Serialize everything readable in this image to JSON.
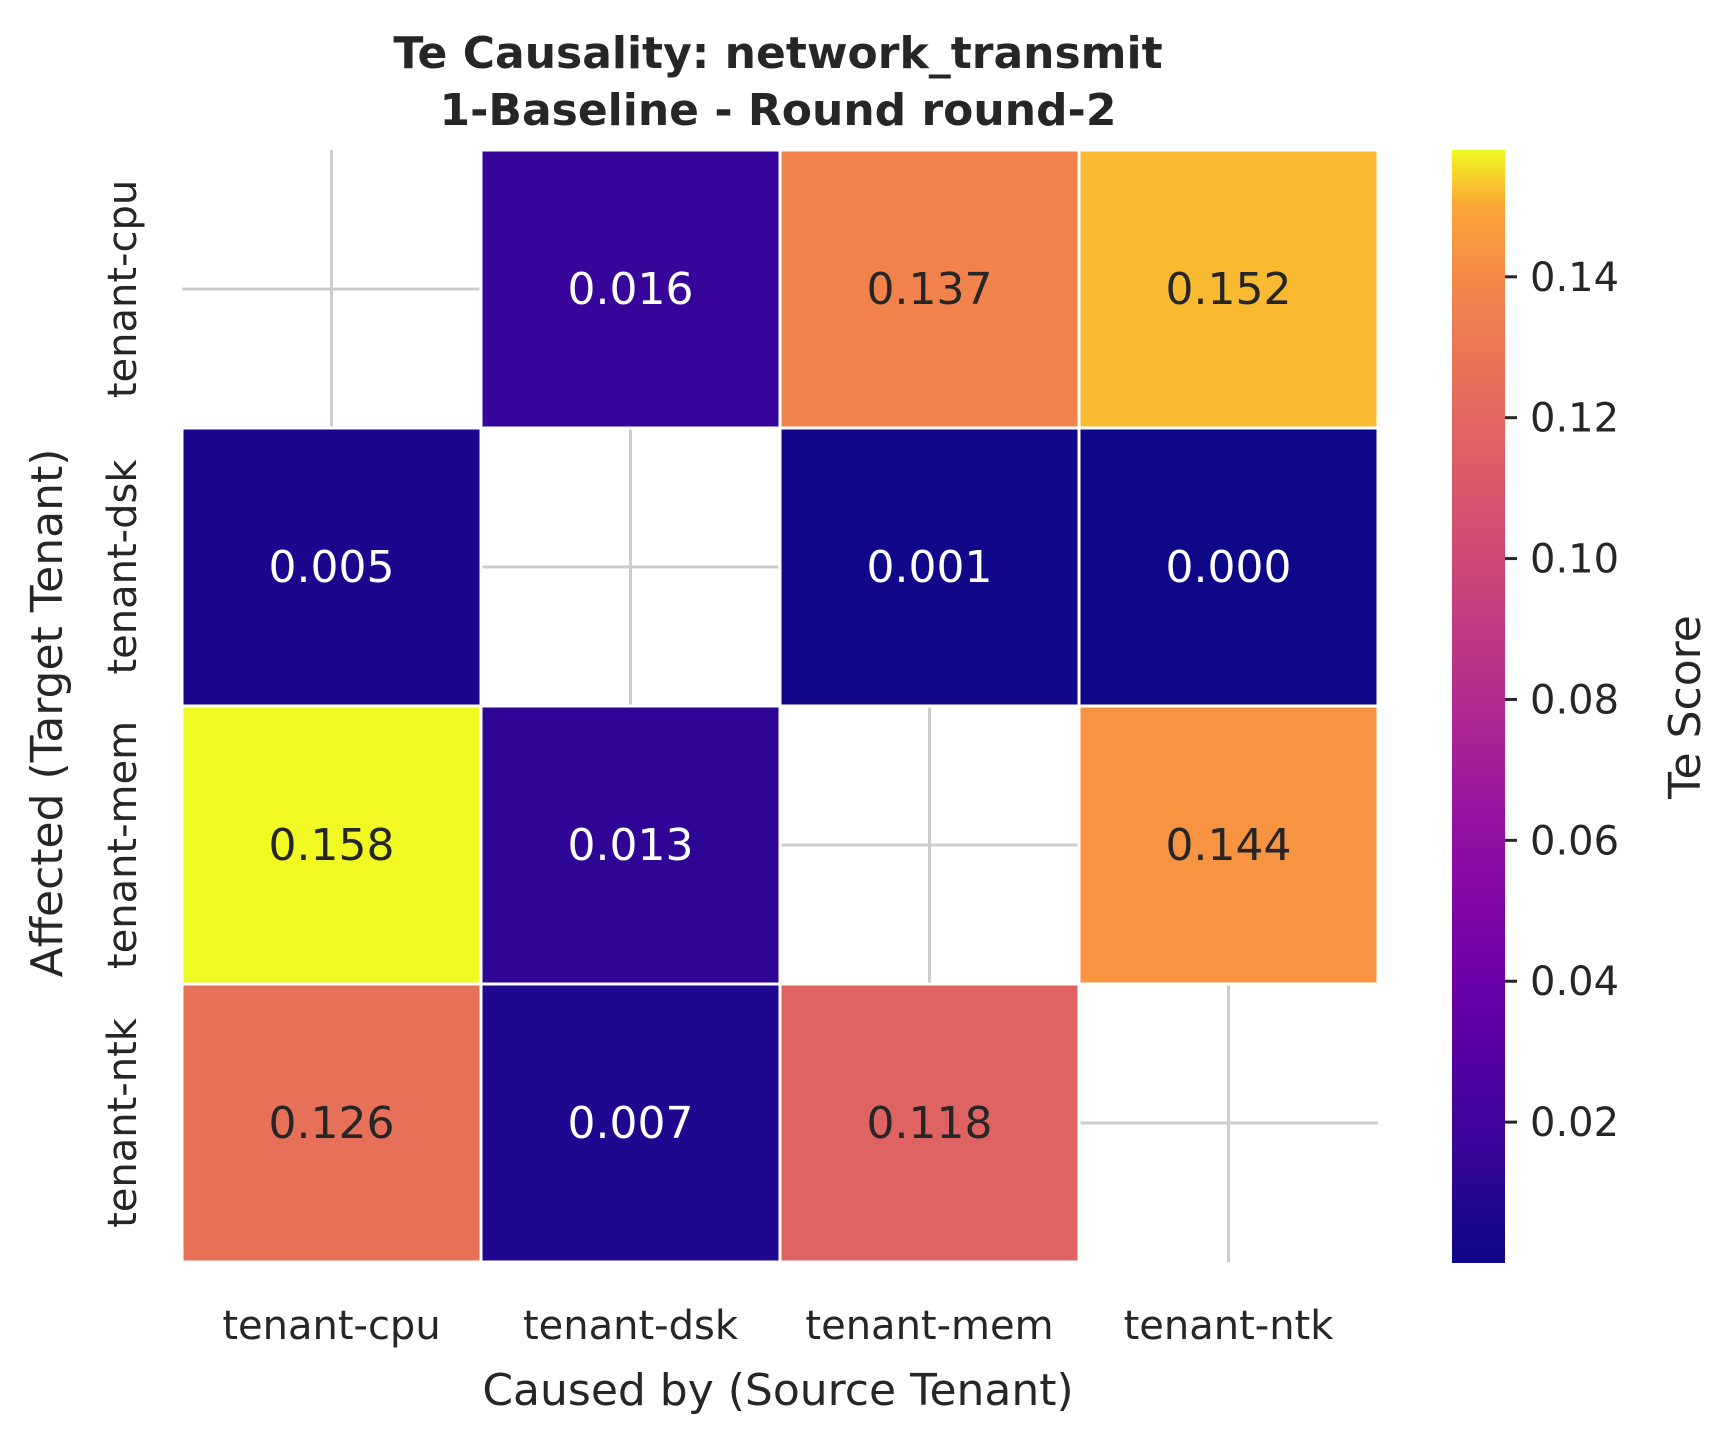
{
  "chart_data": {
    "type": "heatmap",
    "title": [
      "Te Causality: network_transmit",
      "1-Baseline - Round round-2"
    ],
    "xlabel": "Caused by (Source Tenant)",
    "ylabel": "Affected (Target Tenant)",
    "x_categories": [
      "tenant-cpu",
      "tenant-dsk",
      "tenant-mem",
      "tenant-ntk"
    ],
    "y_categories": [
      "tenant-cpu",
      "tenant-dsk",
      "tenant-mem",
      "tenant-ntk"
    ],
    "values": [
      [
        null,
        0.016,
        0.137,
        0.152
      ],
      [
        0.005,
        null,
        0.001,
        0.0
      ],
      [
        0.158,
        0.013,
        null,
        0.144
      ],
      [
        0.126,
        0.007,
        0.118,
        null
      ]
    ],
    "value_labels": [
      [
        "",
        "0.016",
        "0.137",
        "0.152"
      ],
      [
        "0.005",
        "",
        "0.001",
        "0.000"
      ],
      [
        "0.158",
        "0.013",
        "",
        "0.144"
      ],
      [
        "0.126",
        "0.007",
        "0.118",
        ""
      ]
    ],
    "colormap": "plasma",
    "colorbar": {
      "label": "Te Score",
      "min": 0.0,
      "max": 0.158,
      "ticks": [
        0.02,
        0.04,
        0.06,
        0.08,
        0.1,
        0.12,
        0.14
      ],
      "tick_labels": [
        "0.02",
        "0.04",
        "0.06",
        "0.08",
        "0.10",
        "0.12",
        "0.14"
      ]
    },
    "grid": true,
    "colors": {
      "text_dark": "#262626",
      "text_light": "#ffffff",
      "grid": "#cccccc",
      "cell_border": "#ffffff"
    }
  }
}
